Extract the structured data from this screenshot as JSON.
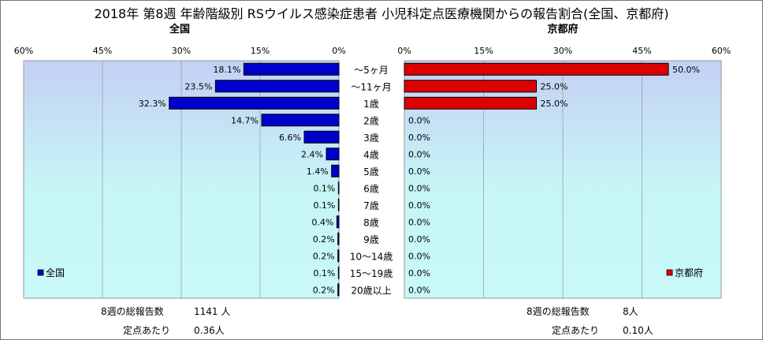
{
  "title": "2018年 第8週 年齢階級別 RSウイルス感染症患者 小児科定点医療機関からの報告割合(全国、京都府)",
  "chart_data": [
    {
      "type": "bar",
      "orientation": "horizontal",
      "direction": "right-to-left",
      "title": "全国",
      "categories": [
        "～5ヶ月",
        "～11ヶ月",
        "1歳",
        "2歳",
        "3歳",
        "4歳",
        "5歳",
        "6歳",
        "7歳",
        "8歳",
        "9歳",
        "10～14歳",
        "15～19歳",
        "20歳以上"
      ],
      "series": [
        {
          "name": "全国",
          "color": "#0000cc",
          "values": [
            18.1,
            23.5,
            32.3,
            14.7,
            6.6,
            2.4,
            1.4,
            0.1,
            0.1,
            0.4,
            0.2,
            0.2,
            0.1,
            0.2
          ],
          "labels": [
            "18.1%",
            "23.5%",
            "32.3%",
            "14.7%",
            "6.6%",
            "2.4%",
            "1.4%",
            "0.1%",
            "0.1%",
            "0.4%",
            "0.2%",
            "0.2%",
            "0.1%",
            "0.2%"
          ]
        }
      ],
      "xlim": [
        0,
        60
      ],
      "ticks": [
        "60%",
        "45%",
        "30%",
        "15%",
        "0%"
      ],
      "legend": "bottom-left"
    },
    {
      "type": "bar",
      "orientation": "horizontal",
      "direction": "left-to-right",
      "title": "京都府",
      "categories": [
        "～5ヶ月",
        "～11ヶ月",
        "1歳",
        "2歳",
        "3歳",
        "4歳",
        "5歳",
        "6歳",
        "7歳",
        "8歳",
        "9歳",
        "10～14歳",
        "15～19歳",
        "20歳以上"
      ],
      "series": [
        {
          "name": "京都府",
          "color": "#dd0000",
          "values": [
            50.0,
            25.0,
            25.0,
            0,
            0,
            0,
            0,
            0,
            0,
            0,
            0,
            0,
            0,
            0
          ],
          "labels": [
            "50.0%",
            "25.0%",
            "25.0%",
            "0.0%",
            "0.0%",
            "0.0%",
            "0.0%",
            "0.0%",
            "0.0%",
            "0.0%",
            "0.0%",
            "0.0%",
            "0.0%",
            "0.0%"
          ]
        }
      ],
      "xlim": [
        0,
        60
      ],
      "ticks": [
        "0%",
        "15%",
        "30%",
        "45%",
        "60%"
      ],
      "legend": "bottom-right"
    }
  ],
  "stats": {
    "national": {
      "total_label": "8週の総報告数",
      "total_value": "1141 人",
      "per_label": "定点あたり",
      "per_value": "0.36人"
    },
    "kyoto": {
      "total_label": "8週の総報告数",
      "total_value": "8人",
      "per_label": "定点あたり",
      "per_value": "0.10人"
    }
  }
}
